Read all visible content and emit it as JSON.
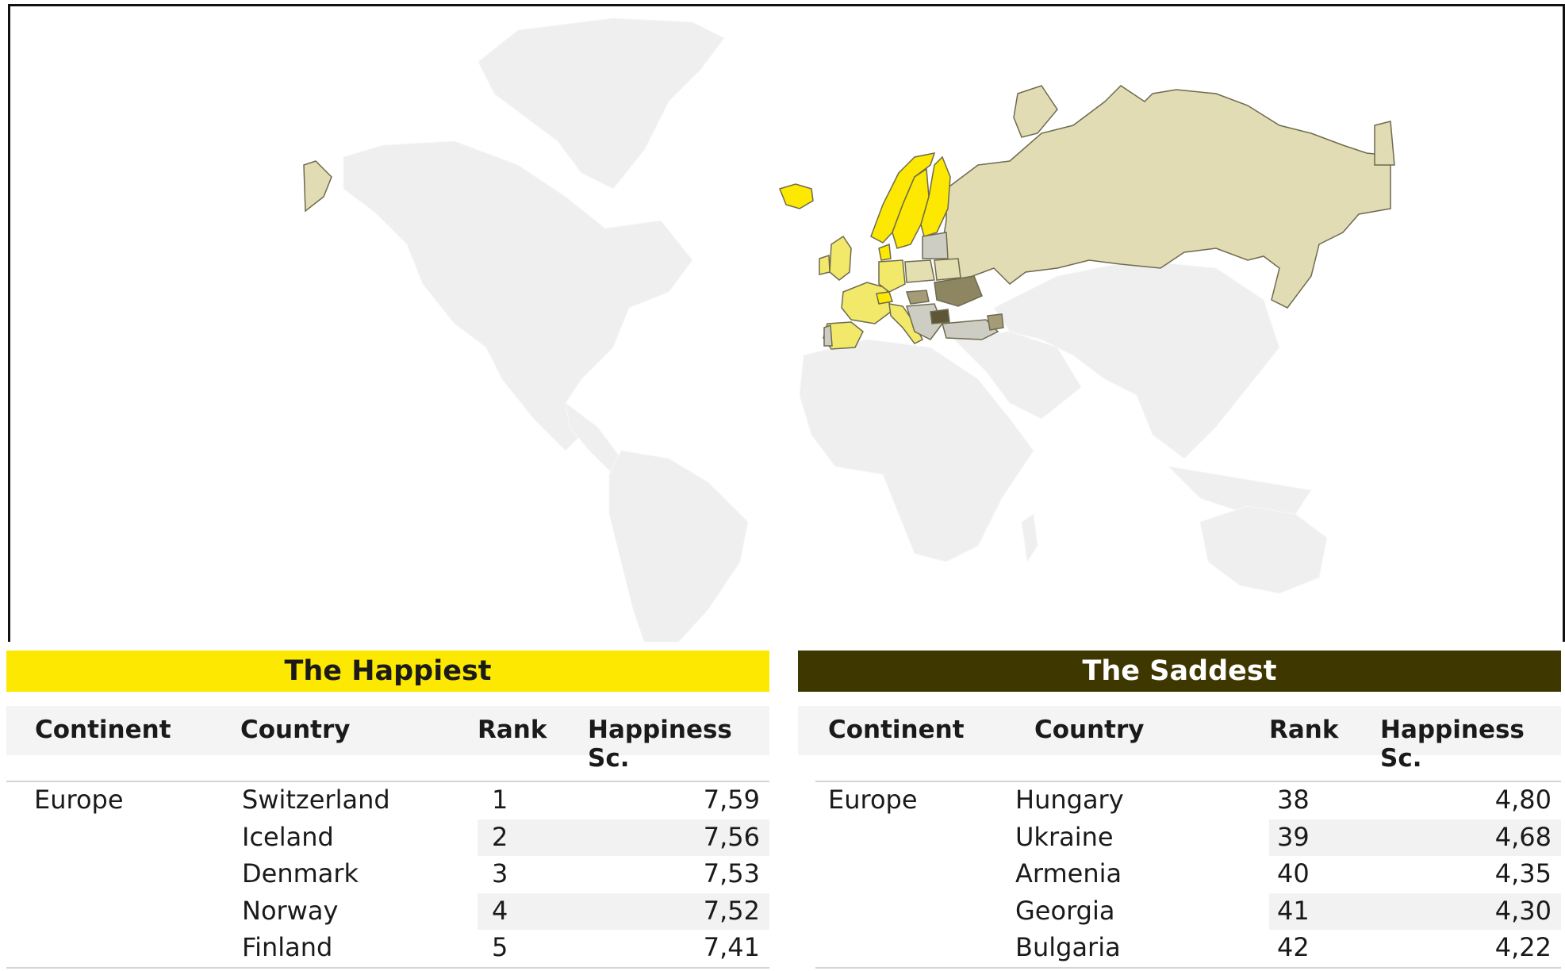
{
  "map": {
    "highlight_colors": {
      "happiest": "#fce800",
      "bright": "#f2e86a",
      "mid": "#e4dfb0",
      "russia": "#e1dcb3",
      "grey": "#cdcdc4",
      "dark": "#8e8660",
      "background_land": "#efefef"
    }
  },
  "happiest": {
    "title": "The Happiest",
    "header_color": "#fce800",
    "columns": [
      "Continent",
      "Country",
      "Rank",
      "Happiness Sc."
    ],
    "continent": "Europe",
    "rows": [
      {
        "country": "Switzerland",
        "rank": "1",
        "score": "7,59"
      },
      {
        "country": "Iceland",
        "rank": "2",
        "score": "7,56"
      },
      {
        "country": "Denmark",
        "rank": "3",
        "score": "7,53"
      },
      {
        "country": "Norway",
        "rank": "4",
        "score": "7,52"
      },
      {
        "country": "Finland",
        "rank": "5",
        "score": "7,41"
      }
    ]
  },
  "saddest": {
    "title": "The Saddest",
    "header_color": "#3f3700",
    "columns": [
      "Continent",
      "Country",
      "Rank",
      "Happiness Sc."
    ],
    "continent": "Europe",
    "rows": [
      {
        "country": "Hungary",
        "rank": "38",
        "score": "4,80"
      },
      {
        "country": "Ukraine",
        "rank": "39",
        "score": "4,68"
      },
      {
        "country": "Armenia",
        "rank": "40",
        "score": "4,35"
      },
      {
        "country": "Georgia",
        "rank": "41",
        "score": "4,30"
      },
      {
        "country": "Bulgaria",
        "rank": "42",
        "score": "4,22"
      }
    ]
  }
}
